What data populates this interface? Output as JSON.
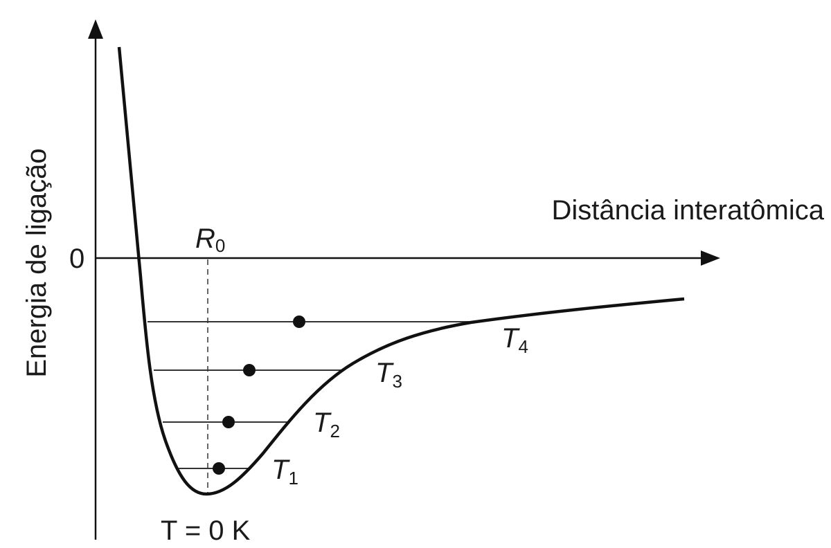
{
  "diagram": {
    "y_axis_label": "Energia de ligação",
    "x_axis_label": "Distância interatômica",
    "zero_label": "0",
    "r0_label": {
      "main": "R",
      "sub": "0"
    },
    "ground_label": "T = 0 K",
    "levels": [
      {
        "main": "T",
        "sub": "1"
      },
      {
        "main": "T",
        "sub": "2"
      },
      {
        "main": "T",
        "sub": "3"
      },
      {
        "main": "T",
        "sub": "4"
      }
    ],
    "colors": {
      "curve": "#111111",
      "axes": "#111111",
      "levels": "#333333"
    }
  }
}
